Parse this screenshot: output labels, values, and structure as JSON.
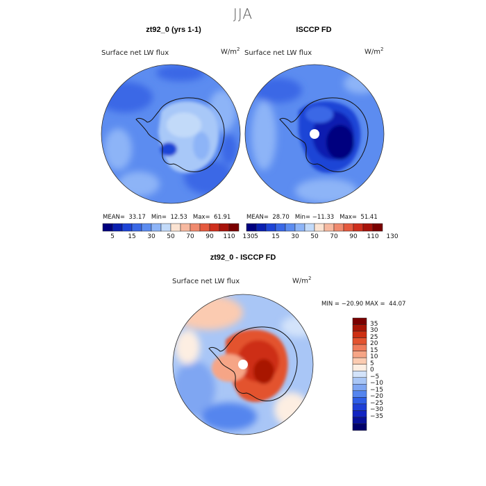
{
  "season": "JJA",
  "colors": {
    "abs_scale": [
      "#00007f",
      "#0a1fb0",
      "#1e44d6",
      "#3a68e6",
      "#5c8cf0",
      "#8db4f7",
      "#c2daf9",
      "#fbe3d2",
      "#f7b9a0",
      "#f08a6e",
      "#e55a3f",
      "#cf2f1d",
      "#a8130b",
      "#7a0000"
    ],
    "diff_scale": [
      "#00006b",
      "#08119a",
      "#1224c2",
      "#1e3fd6",
      "#2f5ee6",
      "#5585ee",
      "#7fa6f2",
      "#a9c6f6",
      "#d3e3fa",
      "#fdeee2",
      "#fbcbb1",
      "#f6a586",
      "#ef7c5c",
      "#e3532f",
      "#cd2f12",
      "#a81505",
      "#7a0000"
    ],
    "land": "#111111"
  },
  "panels": [
    {
      "title": "zt92_0 (yrs 1-1)",
      "field_label": "Surface net LW flux",
      "units": "W/m",
      "units_exp": "2",
      "stats": "MEAN=  33.17   Min=  12.53   Max=  61.91"
    },
    {
      "title": "ISCCP FD",
      "field_label": "Surface net LW flux",
      "units": "W/m",
      "units_exp": "2",
      "stats": "MEAN=  28.70   Min= −11.33   Max=  51.41"
    },
    {
      "title": "zt92_0 - ISCCP FD",
      "field_label": "Surface net LW flux",
      "units": "W/m",
      "units_exp": "2",
      "stats": "MIN = −20.90 MAX =  44.07"
    }
  ],
  "chart_data": [
    {
      "type": "heatmap",
      "projection": "south-polar-stereographic",
      "title": "zt92_0 (yrs 1-1)",
      "variable": "Surface net LW flux",
      "units": "W/m2",
      "mean": 33.17,
      "min": 12.53,
      "max": 61.91,
      "colorbar_levels": [
        5,
        10,
        15,
        20,
        30,
        40,
        50,
        60,
        70,
        80,
        90,
        100,
        110,
        120,
        130
      ],
      "colorbar_tick_labels": [
        "5",
        "15",
        "30",
        "50",
        "70",
        "90",
        "110",
        "130"
      ]
    },
    {
      "type": "heatmap",
      "projection": "south-polar-stereographic",
      "title": "ISCCP FD",
      "variable": "Surface net LW flux",
      "units": "W/m2",
      "mean": 28.7,
      "min": -11.33,
      "max": 51.41,
      "colorbar_levels": [
        5,
        10,
        15,
        20,
        30,
        40,
        50,
        60,
        70,
        80,
        90,
        100,
        110,
        120,
        130
      ],
      "colorbar_tick_labels": [
        "5",
        "15",
        "30",
        "50",
        "70",
        "90",
        "110",
        "130"
      ]
    },
    {
      "type": "heatmap",
      "projection": "south-polar-stereographic",
      "title": "zt92_0 - ISCCP FD",
      "variable": "Surface net LW flux",
      "units": "W/m2",
      "min": -20.9,
      "max": 44.07,
      "colorbar_levels": [
        -35,
        -30,
        -25,
        -20,
        -15,
        -10,
        -5,
        0,
        5,
        10,
        15,
        20,
        25,
        30,
        35
      ],
      "colorbar_tick_labels": [
        "35",
        "30",
        "25",
        "20",
        "15",
        "10",
        "5",
        "0",
        "−5",
        "−10",
        "−15",
        "−20",
        "−25",
        "−30",
        "−35"
      ]
    }
  ]
}
